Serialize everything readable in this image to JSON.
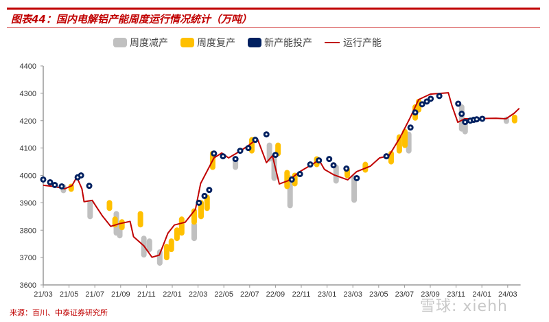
{
  "header": {
    "title": "图表44：国内电解铝产能周度运行情况统计（万吨）"
  },
  "footer": {
    "source": "来源：百川、中泰证券研究所",
    "watermark": "雪球: xiehh"
  },
  "colors": {
    "reduction": "#c0c0c0",
    "resumption": "#ffc000",
    "new_capacity": "#002060",
    "running": "#c00000",
    "title": "#c00000"
  },
  "chart_data": {
    "type": "line+range-markers",
    "title": "图表44：国内电解铝产能周度运行情况统计（万吨）",
    "legend": [
      "周度减产",
      "周度复产",
      "新产能投产",
      "运行产能"
    ],
    "legend_position": "top",
    "grid": false,
    "ylim": [
      3600,
      4400
    ],
    "yticks": [
      "3600",
      "3700",
      "3800",
      "3900",
      "4000",
      "4100",
      "4200",
      "4300",
      "4400"
    ],
    "xlim": [
      "2021-03-01",
      "2024-04-01"
    ],
    "xticks": [
      "21/03",
      "21/05",
      "21/07",
      "21/09",
      "21/11",
      "22/01",
      "22/03",
      "22/05",
      "22/07",
      "22/09",
      "22/11",
      "23/01",
      "23/03",
      "23/05",
      "23/07",
      "23/09",
      "23/11",
      "24/01",
      "24/03"
    ],
    "running_capacity": [
      [
        "2021-03-01",
        3964
      ],
      [
        "2021-03-28",
        3959
      ],
      [
        "2021-04-21",
        3951
      ],
      [
        "2021-05-08",
        3963
      ],
      [
        "2021-05-19",
        3994
      ],
      [
        "2021-06-01",
        3951
      ],
      [
        "2021-06-06",
        3904
      ],
      [
        "2021-06-25",
        3909
      ],
      [
        "2021-07-03",
        3889
      ],
      [
        "2021-07-19",
        3851
      ],
      [
        "2021-08-08",
        3814
      ],
      [
        "2021-08-29",
        3824
      ],
      [
        "2021-09-23",
        3832
      ],
      [
        "2021-10-01",
        3776
      ],
      [
        "2021-10-25",
        3743
      ],
      [
        "2021-11-14",
        3701
      ],
      [
        "2021-12-01",
        3709
      ],
      [
        "2021-12-21",
        3789
      ],
      [
        "2022-01-06",
        3819
      ],
      [
        "2022-02-01",
        3829
      ],
      [
        "2022-02-25",
        3876
      ],
      [
        "2022-03-07",
        3971
      ],
      [
        "2022-04-08",
        4064
      ],
      [
        "2022-04-26",
        4082
      ],
      [
        "2022-05-12",
        4064
      ],
      [
        "2022-06-09",
        4089
      ],
      [
        "2022-06-28",
        4109
      ],
      [
        "2022-07-19",
        4134
      ],
      [
        "2022-08-10",
        4047
      ],
      [
        "2022-08-24",
        4072
      ],
      [
        "2022-09-10",
        3969
      ],
      [
        "2022-10-01",
        3981
      ],
      [
        "2022-10-28",
        4014
      ],
      [
        "2022-11-30",
        4044
      ],
      [
        "2022-12-12",
        4057
      ],
      [
        "2022-12-25",
        4022
      ],
      [
        "2023-01-17",
        4002
      ],
      [
        "2023-02-19",
        3984
      ],
      [
        "2023-03-10",
        4014
      ],
      [
        "2023-04-12",
        4034
      ],
      [
        "2023-05-03",
        4064
      ],
      [
        "2023-05-25",
        4072
      ],
      [
        "2023-06-21",
        4139
      ],
      [
        "2023-07-13",
        4207
      ],
      [
        "2023-08-04",
        4277
      ],
      [
        "2023-09-01",
        4297
      ],
      [
        "2023-10-13",
        4302
      ],
      [
        "2023-10-21",
        4257
      ],
      [
        "2023-11-05",
        4194
      ],
      [
        "2023-11-21",
        4207
      ],
      [
        "2024-02-04",
        4209
      ],
      [
        "2024-02-27",
        4207
      ],
      [
        "2024-03-16",
        4227
      ],
      [
        "2024-03-28",
        4245
      ]
    ],
    "weekly_reduction": [
      [
        "2021-04-18",
        3945,
        3958
      ],
      [
        "2021-06-20",
        3850,
        3900
      ],
      [
        "2021-08-21",
        3790,
        3860
      ],
      [
        "2021-08-29",
        3780,
        3820
      ],
      [
        "2021-10-25",
        3710,
        3770
      ],
      [
        "2021-11-08",
        3730,
        3760
      ],
      [
        "2021-12-02",
        3680,
        3720
      ],
      [
        "2022-02-22",
        3770,
        3820
      ],
      [
        "2022-05-28",
        4030,
        4060
      ],
      [
        "2022-08-17",
        4060,
        4110
      ],
      [
        "2022-08-28",
        3990,
        4070
      ],
      [
        "2022-10-05",
        3890,
        3990
      ],
      [
        "2023-01-22",
        3980,
        4030
      ],
      [
        "2023-03-04",
        3910,
        3990
      ],
      [
        "2023-07-11",
        4090,
        4150
      ],
      [
        "2023-11-14",
        4170,
        4250
      ],
      [
        "2023-11-22",
        4160,
        4200
      ],
      [
        "2024-02-28",
        4198,
        4205
      ]
    ],
    "weekly_resumption": [
      [
        "2021-05-06",
        3950,
        3960
      ],
      [
        "2021-08-05",
        3880,
        3900
      ],
      [
        "2021-08-18",
        3820,
        3840
      ],
      [
        "2021-09-04",
        3810,
        3830
      ],
      [
        "2021-10-17",
        3820,
        3860
      ],
      [
        "2021-12-18",
        3700,
        3740
      ],
      [
        "2021-12-29",
        3730,
        3760
      ],
      [
        "2022-01-12",
        3770,
        3800
      ],
      [
        "2022-01-23",
        3790,
        3840
      ],
      [
        "2022-02-22",
        3830,
        3870
      ],
      [
        "2022-03-08",
        3850,
        3900
      ],
      [
        "2022-03-22",
        3880,
        3920
      ],
      [
        "2022-04-05",
        4030,
        4080
      ],
      [
        "2022-07-06",
        4090,
        4130
      ],
      [
        "2022-09-07",
        4080,
        4110
      ],
      [
        "2022-09-28",
        3960,
        4010
      ],
      [
        "2022-10-16",
        3970,
        4000
      ],
      [
        "2022-12-07",
        4040,
        4060
      ],
      [
        "2023-02-18",
        4000,
        4020
      ],
      [
        "2023-03-30",
        4020,
        4040
      ],
      [
        "2023-05-30",
        4050,
        4080
      ],
      [
        "2023-06-19",
        4090,
        4140
      ],
      [
        "2023-07-02",
        4110,
        4160
      ],
      [
        "2023-07-26",
        4210,
        4250
      ],
      [
        "2023-08-04",
        4240,
        4270
      ],
      [
        "2024-03-17",
        4200,
        4212
      ]
    ],
    "new_capacity": [
      [
        "2021-03-01",
        3985
      ],
      [
        "2021-03-17",
        3975
      ],
      [
        "2021-03-28",
        3965
      ],
      [
        "2021-04-14",
        3960
      ],
      [
        "2021-05-21",
        3993
      ],
      [
        "2021-05-29",
        4000
      ],
      [
        "2021-06-18",
        3962
      ],
      [
        "2022-03-03",
        3900
      ],
      [
        "2022-03-16",
        3925
      ],
      [
        "2022-03-27",
        3947
      ],
      [
        "2022-04-08",
        4080
      ],
      [
        "2022-04-29",
        4070
      ],
      [
        "2022-05-28",
        4060
      ],
      [
        "2022-06-09",
        4090
      ],
      [
        "2022-06-28",
        4100
      ],
      [
        "2022-07-14",
        4130
      ],
      [
        "2022-08-10",
        4150
      ],
      [
        "2022-09-01",
        4075
      ],
      [
        "2022-10-09",
        3985
      ],
      [
        "2022-10-28",
        4005
      ],
      [
        "2022-11-22",
        4040
      ],
      [
        "2022-12-12",
        4055
      ],
      [
        "2023-01-06",
        4060
      ],
      [
        "2023-01-16",
        4037
      ],
      [
        "2023-02-16",
        4025
      ],
      [
        "2023-03-10",
        3990
      ],
      [
        "2023-05-19",
        4070
      ],
      [
        "2023-07-15",
        4175
      ],
      [
        "2023-07-26",
        4230
      ],
      [
        "2023-08-12",
        4260
      ],
      [
        "2023-08-23",
        4270
      ],
      [
        "2023-09-02",
        4280
      ],
      [
        "2023-09-22",
        4290
      ],
      [
        "2023-11-06",
        4262
      ],
      [
        "2023-11-14",
        4225
      ],
      [
        "2023-11-22",
        4195
      ],
      [
        "2023-12-04",
        4200
      ],
      [
        "2023-12-12",
        4203
      ],
      [
        "2023-12-19",
        4205
      ],
      [
        "2024-01-02",
        4207
      ]
    ]
  }
}
